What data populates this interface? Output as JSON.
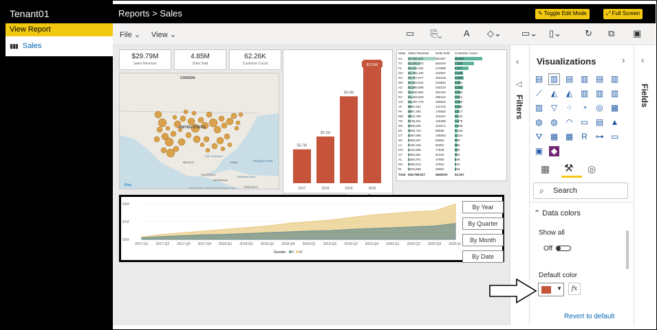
{
  "nav": {
    "tenant": "Tenant01",
    "view_report": "View Report",
    "sales": "Sales"
  },
  "header": {
    "title": "Reports > Sales",
    "toggle_edit": "Toggle Edit Mode",
    "full_screen": "Full Screen"
  },
  "menu": {
    "file": "File",
    "view": "View"
  },
  "cards": [
    {
      "value": "$29.79M",
      "label": "Sales Revenue"
    },
    {
      "value": "4.85M",
      "label": "Units Sold"
    },
    {
      "value": "62.26K",
      "label": "Customer Count"
    }
  ],
  "map": {
    "canada": "CANADA",
    "us": "UNITED STATES",
    "mexico": "MEXICO",
    "gulf": "Gulf of\nMexico",
    "cuba": "CUBA",
    "sargasso": "Sargasso Sea",
    "caribbean": "Caribbean Sea",
    "guatemala": "GUATEMALA",
    "nicaragua": "NICARAGUA",
    "venezuela": "VENEZUELA",
    "bing": "Bing",
    "copyright": "© 2021 TomTom, © 2021 Microsoft Corporation, Terms"
  },
  "chart_data": [
    {
      "type": "bar",
      "categories": [
        "2017",
        "2018",
        "2019",
        "2020"
      ],
      "values": [
        3.7,
        5.1,
        9.5,
        13.5
      ],
      "data_labels": [
        "$3.7M",
        "$5.1M",
        "$9.5M",
        "$13.5M"
      ],
      "color": "#c5543b"
    },
    {
      "type": "area",
      "categories": [
        "2017-Q1",
        "2017-Q2",
        "2017-Q3",
        "2017-Q4",
        "2018-Q1",
        "2018-Q2",
        "2018-Q3",
        "2018-Q4",
        "2019-Q1",
        "2019-Q2",
        "2019-Q3",
        "2019-Q4",
        "2020-Q1",
        "2020-Q2",
        "2020-Q3",
        "2020-Q4"
      ],
      "yticks": [
        "$4M",
        "$2M",
        "$0M"
      ],
      "legend_title": "Gender",
      "series": [
        {
          "name": "F",
          "color": "#6b8e8e",
          "values": [
            0.2,
            0.35,
            0.45,
            0.55,
            0.6,
            0.7,
            0.8,
            0.9,
            1.0,
            1.05,
            1.2,
            1.3,
            1.4,
            1.5,
            1.6,
            1.9
          ]
        },
        {
          "name": "M",
          "color": "#e8c97e",
          "values": [
            0.3,
            0.6,
            0.8,
            1.0,
            1.2,
            1.4,
            1.6,
            1.9,
            2.1,
            2.3,
            2.6,
            2.9,
            3.1,
            3.3,
            3.4,
            4.2
          ]
        }
      ]
    }
  ],
  "table": {
    "headers": [
      "State",
      "Sales Revenue",
      "Units Sold",
      "Customer Count"
    ],
    "rows": [
      [
        "CA",
        "$7,354,441",
        "581057",
        "10,947"
      ],
      [
        "TX",
        "$3,320,475",
        "564976",
        "7,622"
      ],
      [
        "FL",
        "$2,216,192",
        "473899",
        "5,577"
      ],
      [
        "OH",
        "$1,785,100",
        "215837",
        "3,420"
      ],
      [
        "GA",
        "$1,767,077",
        "303126",
        "3,530"
      ],
      [
        "WA",
        "$1,682,542",
        "223832",
        "2,284"
      ],
      [
        "AZ",
        "$1,596,696",
        "234120",
        "3,321"
      ],
      [
        "NC",
        "$1,448,964",
        "261443",
        "2,109"
      ],
      [
        "NY",
        "$1,353,529",
        "255122",
        "2,051"
      ],
      [
        "CO",
        "$1,087,779",
        "166522",
        "2,155"
      ],
      [
        "VA",
        "$992,454",
        "131731",
        "2,190"
      ],
      [
        "PA",
        "$887,492",
        "176822",
        "1,517"
      ],
      [
        "NM",
        "$833,795",
        "123167",
        "1,504"
      ],
      [
        "TN",
        "$738,251",
        "129460",
        "1,579"
      ],
      [
        "MA",
        "$505,535",
        "113471",
        "1,265"
      ],
      [
        "MI",
        "$509,734",
        "90696",
        "1,153"
      ],
      [
        "CT",
        "$497,095",
        "105063",
        "1,154"
      ],
      [
        "SC",
        "$458,267",
        "82862",
        "978"
      ],
      [
        "LA",
        "$430,445",
        "91901",
        "963"
      ],
      [
        "OH",
        "$416,938",
        "77638",
        "975"
      ],
      [
        "UT",
        "$384,851",
        "51342",
        "790"
      ],
      [
        "AL",
        "$260,971",
        "47955",
        "599"
      ],
      [
        "NH",
        "$256,513",
        "47601",
        "623"
      ],
      [
        "RI",
        "$203,690",
        "26052",
        "459"
      ]
    ],
    "total": [
      "Total",
      "$29,788,517",
      "4849220",
      "62,257"
    ]
  },
  "date_buttons": [
    "By Year",
    "By Quarter",
    "By Month",
    "By Date"
  ],
  "panes": {
    "filters": "Filters",
    "visualizations": "Visualizations",
    "fields": "Fields",
    "search_placeholder": "Search",
    "data_colors": "Data colors",
    "show_all": "Show all",
    "off": "Off",
    "default_color": "Default color",
    "fx": "fx",
    "revert": "Revert to default",
    "default_color_value": "#c5543b"
  }
}
